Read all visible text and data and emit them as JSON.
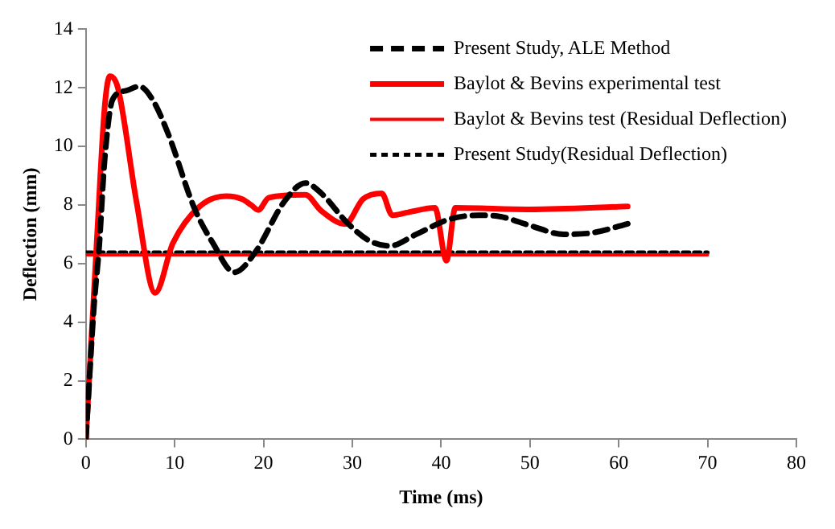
{
  "chart_data": {
    "type": "line",
    "xlabel": "Time (ms)",
    "ylabel": "Deflection (mm)",
    "xlim": [
      0,
      80
    ],
    "xticks": [
      0,
      10,
      20,
      30,
      40,
      50,
      60,
      70,
      80
    ],
    "ylim": [
      0,
      14
    ],
    "yticks": [
      0,
      2,
      4,
      6,
      8,
      10,
      12,
      14
    ],
    "grid": false,
    "legend": "top right",
    "marker": "none",
    "series": [
      {
        "name": "Present Study, ALE Method",
        "color": "#000000",
        "line_style": "dashed",
        "x": [
          0,
          0.9,
          1.5,
          2.1,
          3.0,
          4.5,
          6.0,
          7.5,
          9.3,
          12.2,
          14.3,
          16.7,
          19.1,
          22.3,
          24.7,
          26.5,
          29.4,
          31.8,
          34.2,
          37.2,
          40.8,
          44.2,
          46.7,
          50,
          53.8,
          57,
          61.5
        ],
        "values": [
          0,
          4.5,
          6.6,
          9.5,
          11.6,
          11.9,
          12.05,
          11.6,
          10.4,
          7.9,
          6.7,
          5.7,
          6.4,
          8.1,
          8.75,
          8.4,
          7.4,
          6.8,
          6.6,
          7.0,
          7.5,
          7.65,
          7.6,
          7.3,
          7.0,
          7.05,
          7.4
        ]
      },
      {
        "name": "Baylot & Bevins experimental test",
        "color": "#ff0000",
        "line_style": "solid",
        "x": [
          0,
          1.25,
          2.1,
          2.7,
          3.6,
          5.7,
          7.8,
          9.8,
          12.8,
          15.8,
          17.6,
          18.6,
          19.4,
          20.6,
          24.7,
          26.5,
          29.2,
          31.2,
          33.3,
          34.5,
          36.3,
          39.3,
          40.6,
          41.6,
          50,
          61
        ],
        "values": [
          0,
          6.9,
          11.3,
          12.4,
          12.0,
          8.1,
          5.0,
          6.7,
          7.95,
          8.3,
          8.2,
          8.0,
          7.83,
          8.25,
          8.35,
          7.8,
          7.35,
          8.2,
          8.4,
          7.65,
          7.75,
          7.9,
          6.1,
          7.9,
          7.85,
          7.95
        ]
      },
      {
        "name": "Baylot & Bevins test (Residual Deflection)",
        "color": "#ff0000",
        "line_style": "solid",
        "x": [
          0,
          70
        ],
        "values": [
          6.3,
          6.3
        ]
      },
      {
        "name": "Present Study(Residual Deflection)",
        "color": "#000000",
        "line_style": "dotted",
        "x": [
          0,
          70
        ],
        "values": [
          6.38,
          6.38
        ]
      }
    ]
  }
}
